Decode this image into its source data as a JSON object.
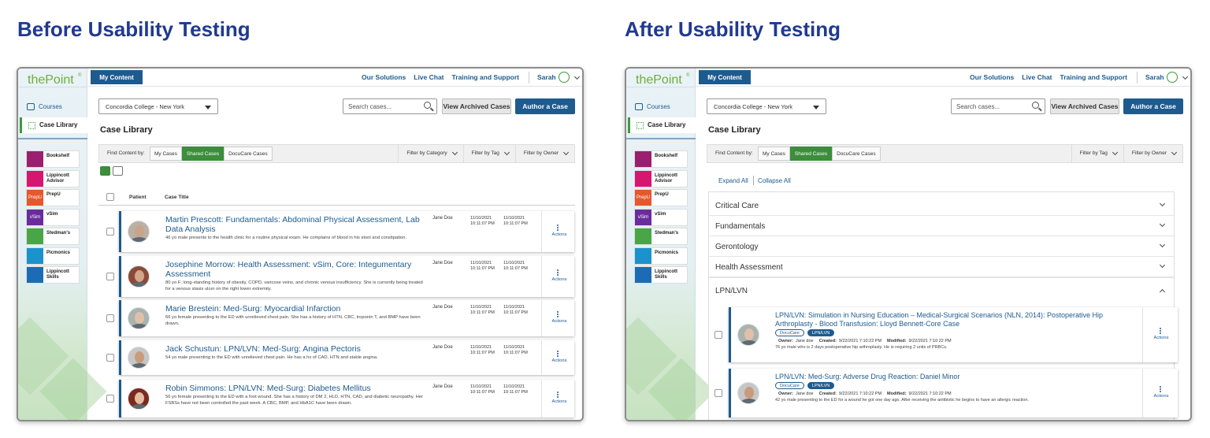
{
  "panels": [
    {
      "heading": "Before Usability Testing",
      "logo": "thePoint",
      "logo_mark": "®",
      "my_content": "My Content",
      "nav": [
        "Our Solutions",
        "Live Chat",
        "Training and Support"
      ],
      "user": "Sarah",
      "sidebar": {
        "courses": "Courses",
        "case_library": "Case Library",
        "products": [
          {
            "label": "Bookshelf"
          },
          {
            "label": "Lippincott Advisor"
          },
          {
            "icon": "PrepU",
            "label": "PrepU"
          },
          {
            "icon": "vSim",
            "label": "vSim"
          },
          {
            "label": "Stedman's"
          },
          {
            "label": "Picmonics"
          },
          {
            "label": "Lippincott Skills"
          }
        ]
      },
      "institution": "Concordia College - New York",
      "search": "Search cases...",
      "archived": "View Archived Cases",
      "author": "Author a Case",
      "page_title": "Case Library",
      "find_by": "Find Content by:",
      "tabs": [
        "My Cases",
        "Shared Cases",
        "DocuCare Cases"
      ],
      "filters": [
        "Filter by Category",
        "Filter by Tag",
        "Filter by Owner"
      ],
      "columns": [
        "Patient",
        "Case Title"
      ],
      "cases": [
        {
          "title": "Martin Prescott: Fundamentals: Abdominal Physical Assessment, Lab Data Analysis",
          "description": "46 yo male presents to the health clinic for a routine physical exam. He complains of blood in his stool and constipation.",
          "owner": "Jane Doe",
          "dates": [
            [
              "11/10/2021",
              "10:11:07 PM"
            ],
            [
              "11/10/2021",
              "10:11:07 PM"
            ]
          ],
          "actions": "Actions"
        },
        {
          "title": "Josephine Morrow: Health Assessment: vSim, Core: Integumentary Assessment",
          "description": "80 yo F: long-standing history of obesity, COPD, varicose veins, and chronic venous insufficiency. She is currently being treated for a venous stasis ulcer on the right lower extremity.",
          "owner": "Jane Doe",
          "dates": [
            [
              "11/10/2021",
              "10:11:07 PM"
            ],
            [
              "11/10/2021",
              "10:11:07 PM"
            ]
          ],
          "actions": "Actions"
        },
        {
          "title": "Marie Brestein: Med-Surg: Myocardial Infarction",
          "description": "66 yo female presenting to the ED with unrelieved chest pain. She has a history of HTN. CBC, troponin T, and BMP have been drawn.",
          "owner": "Jane Doe",
          "dates": [
            [
              "11/10/2021",
              "10:11:07 PM"
            ],
            [
              "11/10/2021",
              "10:11:07 PM"
            ]
          ],
          "actions": "Actions"
        },
        {
          "title": "Jack Schustun: LPN/LVN: Med-Surg: Angina Pectoris",
          "description": "54 yo male presenting to the ED with unrelieved chest pain. He has a hx of CAD, HTN and stable angina.",
          "owner": "Jane Doe",
          "dates": [
            [
              "11/10/2021",
              "10:11:07 PM"
            ],
            [
              "11/10/2021",
              "10:11:07 PM"
            ]
          ],
          "actions": "Actions"
        },
        {
          "title": "Robin Simmons: LPN/LVN: Med-Surg: Diabetes Mellitus",
          "description": "56 yo female presenting to the ED with a foot wound. She has a history of DM 2, HLD, HTN, CAD, and diabetic neuropathy. Her FSBSs have not been controlled the past week. A CBC, BMP, and HbA1C have been drawn.",
          "owner": "Jane Doe",
          "dates": [
            [
              "11/10/2021",
              "10:11:07 PM"
            ],
            [
              "11/10/2021",
              "10:11:07 PM"
            ]
          ],
          "actions": "Actions"
        }
      ]
    },
    {
      "heading": "After Usability Testing",
      "logo": "thePoint",
      "logo_mark": "®",
      "my_content": "My Content",
      "nav": [
        "Our Solutions",
        "Live Chat",
        "Training and Support"
      ],
      "user": "Sarah",
      "sidebar": {
        "courses": "Courses",
        "case_library": "Case Library",
        "products": [
          {
            "label": "Bookshelf"
          },
          {
            "label": "Lippincott Advisor"
          },
          {
            "icon": "PrepU",
            "label": "PrepU"
          },
          {
            "icon": "vSim",
            "label": "vSim"
          },
          {
            "label": "Stedman's"
          },
          {
            "label": "Picmonics"
          },
          {
            "label": "Lippincott Skills"
          }
        ]
      },
      "institution": "Concordia College - New York",
      "search": "Search cases...",
      "archived": "View Archived Cases",
      "author": "Author a Case",
      "page_title": "Case Library",
      "find_by": "Find Content by:",
      "tabs": [
        "My Cases",
        "Shared Cases",
        "DocuCare Cases"
      ],
      "filters": [
        "Filter by Tag",
        "Filter by Owner"
      ],
      "expand_all": "Expand All",
      "collapse_all": "Collapse All",
      "categories": [
        "Critical Care",
        "Fundamentals",
        "Gerontology",
        "Health Assessment"
      ],
      "open_category": "LPN/LVN",
      "cases": [
        {
          "title": "LPN/LVN: Simulation in Nursing Education – Medical-Surgical Scenarios (NLN, 2014): Postoperative Hip Arthroplasty - Blood Transfusion: Lloyd Bennett-Core Case",
          "tags": [
            "DocuCare",
            "LPN/LVN"
          ],
          "owner_label": "Owner:",
          "owner": "Jane doe",
          "created_label": "Created:",
          "created": "9/22/2021 7:10:22 PM",
          "modified_label": "Modified:",
          "modified": "9/22/2021 7:10:22 PM",
          "description": "76 yo male who is 2 days postoperative hip arthroplasty. He is requiring 2 units of PRBCs.",
          "actions": "Actions"
        },
        {
          "title": "LPN/LVN: Med-Surg: Adverse Drug Reaction: Daniel Minor",
          "tags": [
            "DocuCare",
            "LPN/LVN"
          ],
          "owner_label": "Owner:",
          "owner": "Jane doe",
          "created_label": "Created:",
          "created": "9/22/2021 7:10:22 PM",
          "modified_label": "Modified:",
          "modified": "9/22/2021 7:10:22 PM",
          "description": "42 yo male presenting to the ED for a wound he got one day ago. After receiving the antibiotic he begins to have an allergic reaction.",
          "actions": "Actions"
        }
      ]
    }
  ]
}
